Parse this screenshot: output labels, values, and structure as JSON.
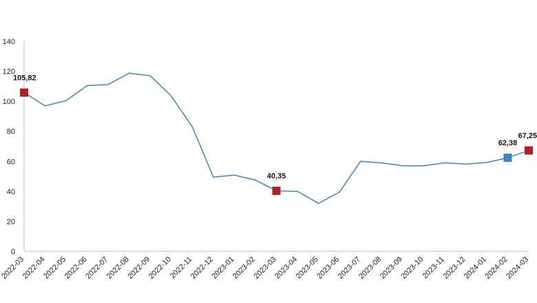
{
  "chart_data": {
    "type": "line",
    "title": "",
    "xlabel": "",
    "ylabel": "",
    "ylim": [
      0,
      140
    ],
    "yticks": [
      0,
      20,
      40,
      60,
      80,
      100,
      120,
      140
    ],
    "grid": false,
    "legend": "none",
    "categories": [
      "2022-03",
      "2022-04",
      "2022-05",
      "2022-06",
      "2022-07",
      "2022-08",
      "2022-09",
      "2022-10",
      "2022-11",
      "2022-12",
      "2023-01",
      "2023-02",
      "2023-03",
      "2023-04",
      "2023-05",
      "2023-06",
      "2023-07",
      "2023-08",
      "2023-09",
      "2023-10",
      "2023-11",
      "2023-12",
      "2024-01",
      "2024-02",
      "2024-03"
    ],
    "series": [
      {
        "values": [
          105.82,
          97.0,
          100.5,
          110.5,
          111.2,
          118.8,
          117.0,
          103.5,
          83.0,
          49.5,
          50.8,
          47.5,
          40.35,
          40.0,
          32.0,
          39.5,
          60.0,
          59.0,
          57.0,
          57.0,
          59.0,
          58.2,
          59.2,
          62.38,
          67.25
        ],
        "color": "#3a86c4"
      }
    ],
    "highlighted_points": [
      {
        "category": "2022-03",
        "value": 105.82,
        "label": "105,82",
        "color": "#b21f24"
      },
      {
        "category": "2023-03",
        "value": 40.35,
        "label": "40,35",
        "color": "#b21f24"
      },
      {
        "category": "2024-02",
        "value": 62.38,
        "label": "62,38",
        "color": "#3a86c4"
      },
      {
        "category": "2024-03",
        "value": 67.25,
        "label": "67,25",
        "color": "#b21f24"
      }
    ]
  }
}
